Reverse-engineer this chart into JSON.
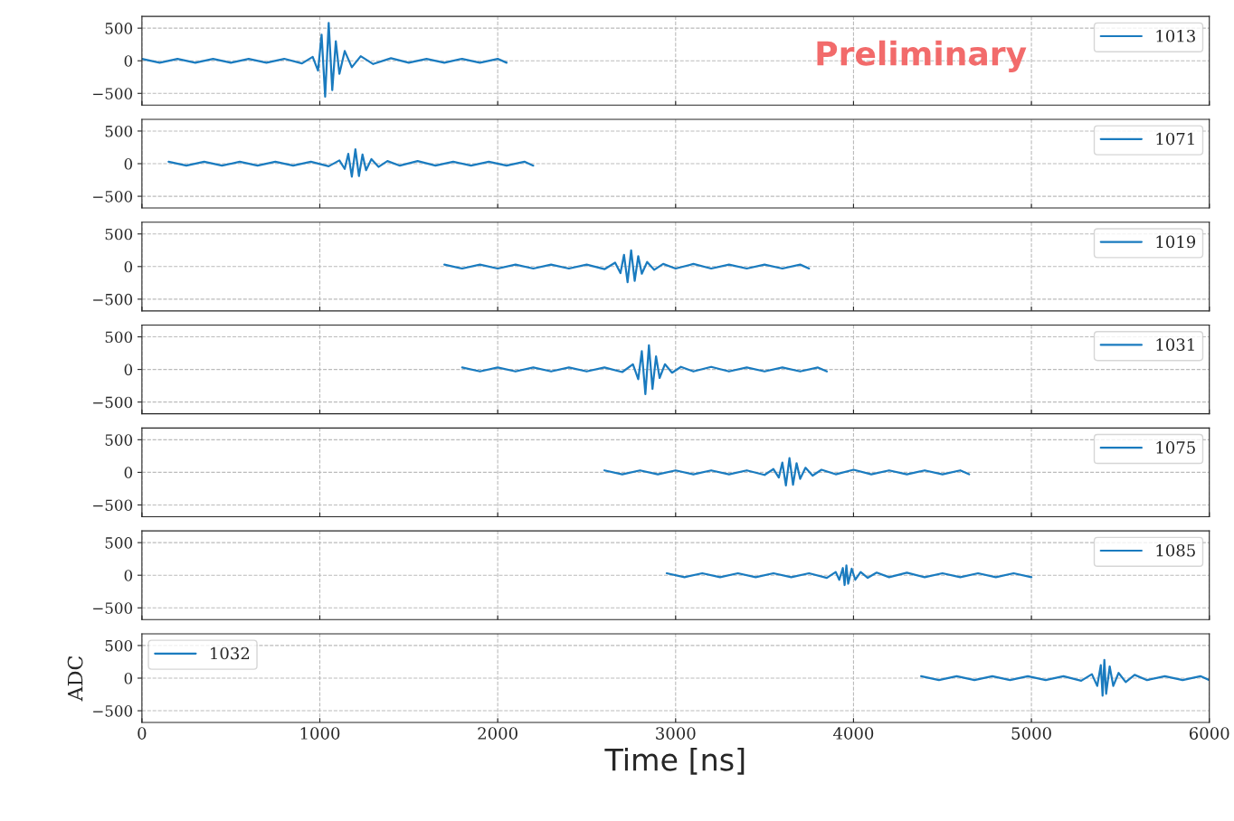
{
  "chart_data": [
    {
      "type": "line",
      "xlim": [
        0,
        6000
      ],
      "xticks": [
        0,
        1000,
        2000,
        3000,
        4000,
        5000,
        6000
      ],
      "ylim": [
        -680,
        680
      ],
      "yticks": [
        -500,
        0,
        500
      ],
      "tick_labels": "y",
      "grid": true,
      "legend": "top right",
      "annotations": [
        "Preliminary"
      ],
      "series": [
        {
          "name": "1013",
          "color": "#1a7bbf",
          "x": [
            0,
            100,
            200,
            300,
            400,
            500,
            600,
            700,
            800,
            900,
            960,
            990,
            1010,
            1030,
            1050,
            1070,
            1090,
            1110,
            1140,
            1180,
            1230,
            1300,
            1400,
            1500,
            1600,
            1700,
            1800,
            1900,
            2000,
            2050
          ],
          "values": [
            30,
            -30,
            30,
            -30,
            30,
            -30,
            30,
            -30,
            30,
            -40,
            60,
            -150,
            400,
            -550,
            580,
            -450,
            300,
            -200,
            150,
            -100,
            70,
            -50,
            40,
            -30,
            30,
            -30,
            30,
            -30,
            30,
            -30
          ]
        }
      ]
    },
    {
      "type": "line",
      "xlim": [
        0,
        6000
      ],
      "xticks": [
        0,
        1000,
        2000,
        3000,
        4000,
        5000,
        6000
      ],
      "ylim": [
        -680,
        680
      ],
      "yticks": [
        -500,
        0,
        500
      ],
      "tick_labels": "y",
      "grid": true,
      "legend": "top right",
      "series": [
        {
          "name": "1071",
          "color": "#1a7bbf",
          "x": [
            150,
            250,
            350,
            450,
            550,
            650,
            750,
            850,
            950,
            1050,
            1110,
            1140,
            1160,
            1180,
            1200,
            1220,
            1240,
            1260,
            1290,
            1330,
            1380,
            1450,
            1550,
            1650,
            1750,
            1850,
            1950,
            2050,
            2150,
            2200
          ],
          "values": [
            30,
            -30,
            30,
            -30,
            30,
            -30,
            30,
            -30,
            30,
            -40,
            50,
            -80,
            150,
            -200,
            220,
            -190,
            140,
            -100,
            70,
            -50,
            40,
            -30,
            40,
            -30,
            30,
            -30,
            30,
            -30,
            30,
            -30
          ]
        }
      ]
    },
    {
      "type": "line",
      "xlim": [
        0,
        6000
      ],
      "xticks": [
        0,
        1000,
        2000,
        3000,
        4000,
        5000,
        6000
      ],
      "ylim": [
        -680,
        680
      ],
      "yticks": [
        -500,
        0,
        500
      ],
      "tick_labels": "y",
      "grid": true,
      "legend": "top right",
      "series": [
        {
          "name": "1019",
          "color": "#1a7bbf",
          "x": [
            1700,
            1800,
            1900,
            2000,
            2100,
            2200,
            2300,
            2400,
            2500,
            2600,
            2660,
            2690,
            2710,
            2730,
            2750,
            2770,
            2790,
            2810,
            2840,
            2880,
            2930,
            3000,
            3100,
            3200,
            3300,
            3400,
            3500,
            3600,
            3700,
            3750
          ],
          "values": [
            30,
            -30,
            30,
            -30,
            30,
            -30,
            30,
            -30,
            30,
            -40,
            60,
            -100,
            180,
            -240,
            250,
            -220,
            160,
            -110,
            70,
            -50,
            40,
            -30,
            40,
            -30,
            30,
            -30,
            30,
            -30,
            30,
            -30
          ]
        }
      ]
    },
    {
      "type": "line",
      "xlim": [
        0,
        6000
      ],
      "xticks": [
        0,
        1000,
        2000,
        3000,
        4000,
        5000,
        6000
      ],
      "ylim": [
        -680,
        680
      ],
      "yticks": [
        -500,
        0,
        500
      ],
      "tick_labels": "y",
      "grid": true,
      "legend": "top right",
      "series": [
        {
          "name": "1031",
          "color": "#1a7bbf",
          "x": [
            1800,
            1900,
            2000,
            2100,
            2200,
            2300,
            2400,
            2500,
            2600,
            2700,
            2760,
            2790,
            2810,
            2830,
            2850,
            2870,
            2890,
            2910,
            2940,
            2980,
            3030,
            3100,
            3200,
            3300,
            3400,
            3500,
            3600,
            3700,
            3800,
            3850
          ],
          "values": [
            30,
            -30,
            30,
            -30,
            30,
            -30,
            30,
            -30,
            30,
            -40,
            80,
            -150,
            280,
            -380,
            370,
            -300,
            200,
            -130,
            80,
            -50,
            40,
            -30,
            40,
            -30,
            30,
            -30,
            30,
            -30,
            30,
            -30
          ]
        }
      ]
    },
    {
      "type": "line",
      "xlim": [
        0,
        6000
      ],
      "xticks": [
        0,
        1000,
        2000,
        3000,
        4000,
        5000,
        6000
      ],
      "ylim": [
        -680,
        680
      ],
      "yticks": [
        -500,
        0,
        500
      ],
      "tick_labels": "y",
      "grid": true,
      "legend": "top right",
      "series": [
        {
          "name": "1075",
          "color": "#1a7bbf",
          "x": [
            2600,
            2700,
            2800,
            2900,
            3000,
            3100,
            3200,
            3300,
            3400,
            3500,
            3550,
            3580,
            3600,
            3620,
            3640,
            3660,
            3680,
            3700,
            3730,
            3770,
            3820,
            3900,
            4000,
            4100,
            4200,
            4300,
            4400,
            4500,
            4600,
            4650
          ],
          "values": [
            30,
            -30,
            30,
            -30,
            30,
            -30,
            30,
            -30,
            30,
            -40,
            50,
            -80,
            150,
            -200,
            220,
            -190,
            140,
            -100,
            70,
            -50,
            40,
            -30,
            40,
            -30,
            30,
            -30,
            30,
            -30,
            30,
            -30
          ]
        }
      ]
    },
    {
      "type": "line",
      "xlim": [
        0,
        6000
      ],
      "xticks": [
        0,
        1000,
        2000,
        3000,
        4000,
        5000,
        6000
      ],
      "ylim": [
        -680,
        680
      ],
      "yticks": [
        -500,
        0,
        500
      ],
      "tick_labels": "y",
      "grid": true,
      "legend": "top right",
      "series": [
        {
          "name": "1085",
          "color": "#1a7bbf",
          "x": [
            2950,
            3050,
            3150,
            3250,
            3350,
            3450,
            3550,
            3650,
            3750,
            3850,
            3900,
            3920,
            3940,
            3950,
            3960,
            3970,
            3990,
            4010,
            4040,
            4080,
            4130,
            4200,
            4300,
            4400,
            4500,
            4600,
            4700,
            4800,
            4900,
            5000
          ],
          "values": [
            30,
            -30,
            30,
            -30,
            30,
            -30,
            30,
            -30,
            30,
            -40,
            50,
            -70,
            110,
            -150,
            150,
            -130,
            100,
            -70,
            50,
            -40,
            40,
            -30,
            40,
            -30,
            30,
            -30,
            30,
            -30,
            30,
            -30
          ]
        }
      ]
    },
    {
      "type": "line",
      "xlim": [
        0,
        6000
      ],
      "xticks": [
        0,
        1000,
        2000,
        3000,
        4000,
        5000,
        6000
      ],
      "ylim": [
        -680,
        680
      ],
      "yticks": [
        -500,
        0,
        500
      ],
      "grid": true,
      "legend": "top left",
      "xlabel": "Time [ns]",
      "ylabel": "ADC",
      "series": [
        {
          "name": "1032",
          "color": "#1a7bbf",
          "x": [
            4380,
            4480,
            4580,
            4680,
            4780,
            4880,
            4980,
            5080,
            5180,
            5280,
            5340,
            5370,
            5390,
            5400,
            5410,
            5420,
            5440,
            5460,
            5490,
            5530,
            5580,
            5650,
            5750,
            5850,
            5950,
            6000
          ],
          "values": [
            30,
            -30,
            30,
            -30,
            30,
            -30,
            30,
            -30,
            30,
            -40,
            60,
            -120,
            200,
            -270,
            280,
            -240,
            180,
            -120,
            80,
            -60,
            50,
            -30,
            30,
            -30,
            30,
            -30
          ]
        }
      ]
    }
  ]
}
